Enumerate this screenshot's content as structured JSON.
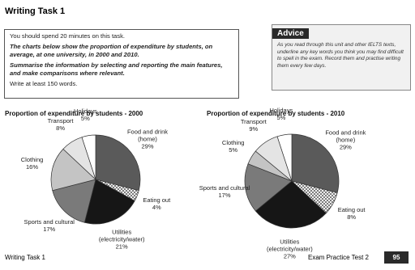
{
  "header": {
    "title": "Writing Task 1"
  },
  "task": {
    "lines": [
      "You should spend 20 minutes on this task.",
      "The charts below show the proportion of expenditure by students, on average, at one university, in 2000 and 2010.",
      "Summarise the information by selecting and reporting the main features, and make comparisons where relevant.",
      "Write at least 150 words."
    ]
  },
  "advice": {
    "title": "Advice",
    "text": "As you read through this unit and other IELTS texts, underline any key words you think you may find difficult to spell in the exam. Record them and practise writing them every few days."
  },
  "chart_data": [
    {
      "type": "pie",
      "title": "Proportion of expenditure by students - 2000",
      "categories": [
        "Food and drink (home)",
        "Eating out",
        "Utilities (electricity/water)",
        "Sports and cultural",
        "Clothing",
        "Transport",
        "Holidays"
      ],
      "values": [
        29,
        4,
        21,
        17,
        16,
        8,
        5
      ],
      "value_labels": [
        "29%",
        "4%",
        "21%",
        "17%",
        "16%",
        "8%",
        "5%"
      ],
      "colors": [
        "#5a5a5a",
        "#ffffff",
        "#161616",
        "#7a7a7a",
        "#c4c4c4",
        "#e4e4e4",
        "#ffffff"
      ],
      "hatched": [
        false,
        true,
        false,
        false,
        false,
        false,
        false
      ]
    },
    {
      "type": "pie",
      "title": "Proportion of expenditure by students - 2010",
      "categories": [
        "Food and drink (home)",
        "Eating out",
        "Utilities (electricity/water)",
        "Sports and cultural",
        "Clothing",
        "Transport",
        "Holidays"
      ],
      "values": [
        29,
        8,
        27,
        17,
        5,
        9,
        5
      ],
      "value_labels": [
        "29%",
        "8%",
        "27%",
        "17%",
        "5%",
        "9%",
        "5%"
      ],
      "colors": [
        "#5a5a5a",
        "#ffffff",
        "#161616",
        "#7a7a7a",
        "#c4c4c4",
        "#e4e4e4",
        "#ffffff"
      ],
      "hatched": [
        false,
        true,
        false,
        false,
        false,
        false,
        false
      ]
    }
  ],
  "footer": {
    "left": "Writing Task 1",
    "right": "Exam Practice Test 2",
    "page": "95"
  }
}
